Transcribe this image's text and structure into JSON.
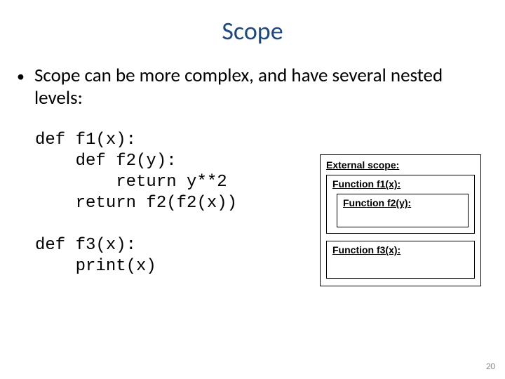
{
  "title": "Scope",
  "bullet": "Scope can be more complex, and have several nested levels:",
  "code": "def f1(x):\n    def f2(y):\n        return y**2\n    return f2(f2(x))\n\ndef f3(x):\n    print(x)",
  "diagram": {
    "external": "External scope:",
    "f1": "Function f1(x):",
    "f2": "Function f2(y):",
    "f3": "Function f3(x):"
  },
  "slide_number": "20",
  "colors": {
    "title": "#1f497d",
    "body": "#000000",
    "border": "#000000",
    "background": "#ffffff",
    "page_num": "#898989"
  },
  "fonts": {
    "title_size": 36,
    "body_size": 27,
    "code_size": 24,
    "diagram_label_size": 14
  }
}
